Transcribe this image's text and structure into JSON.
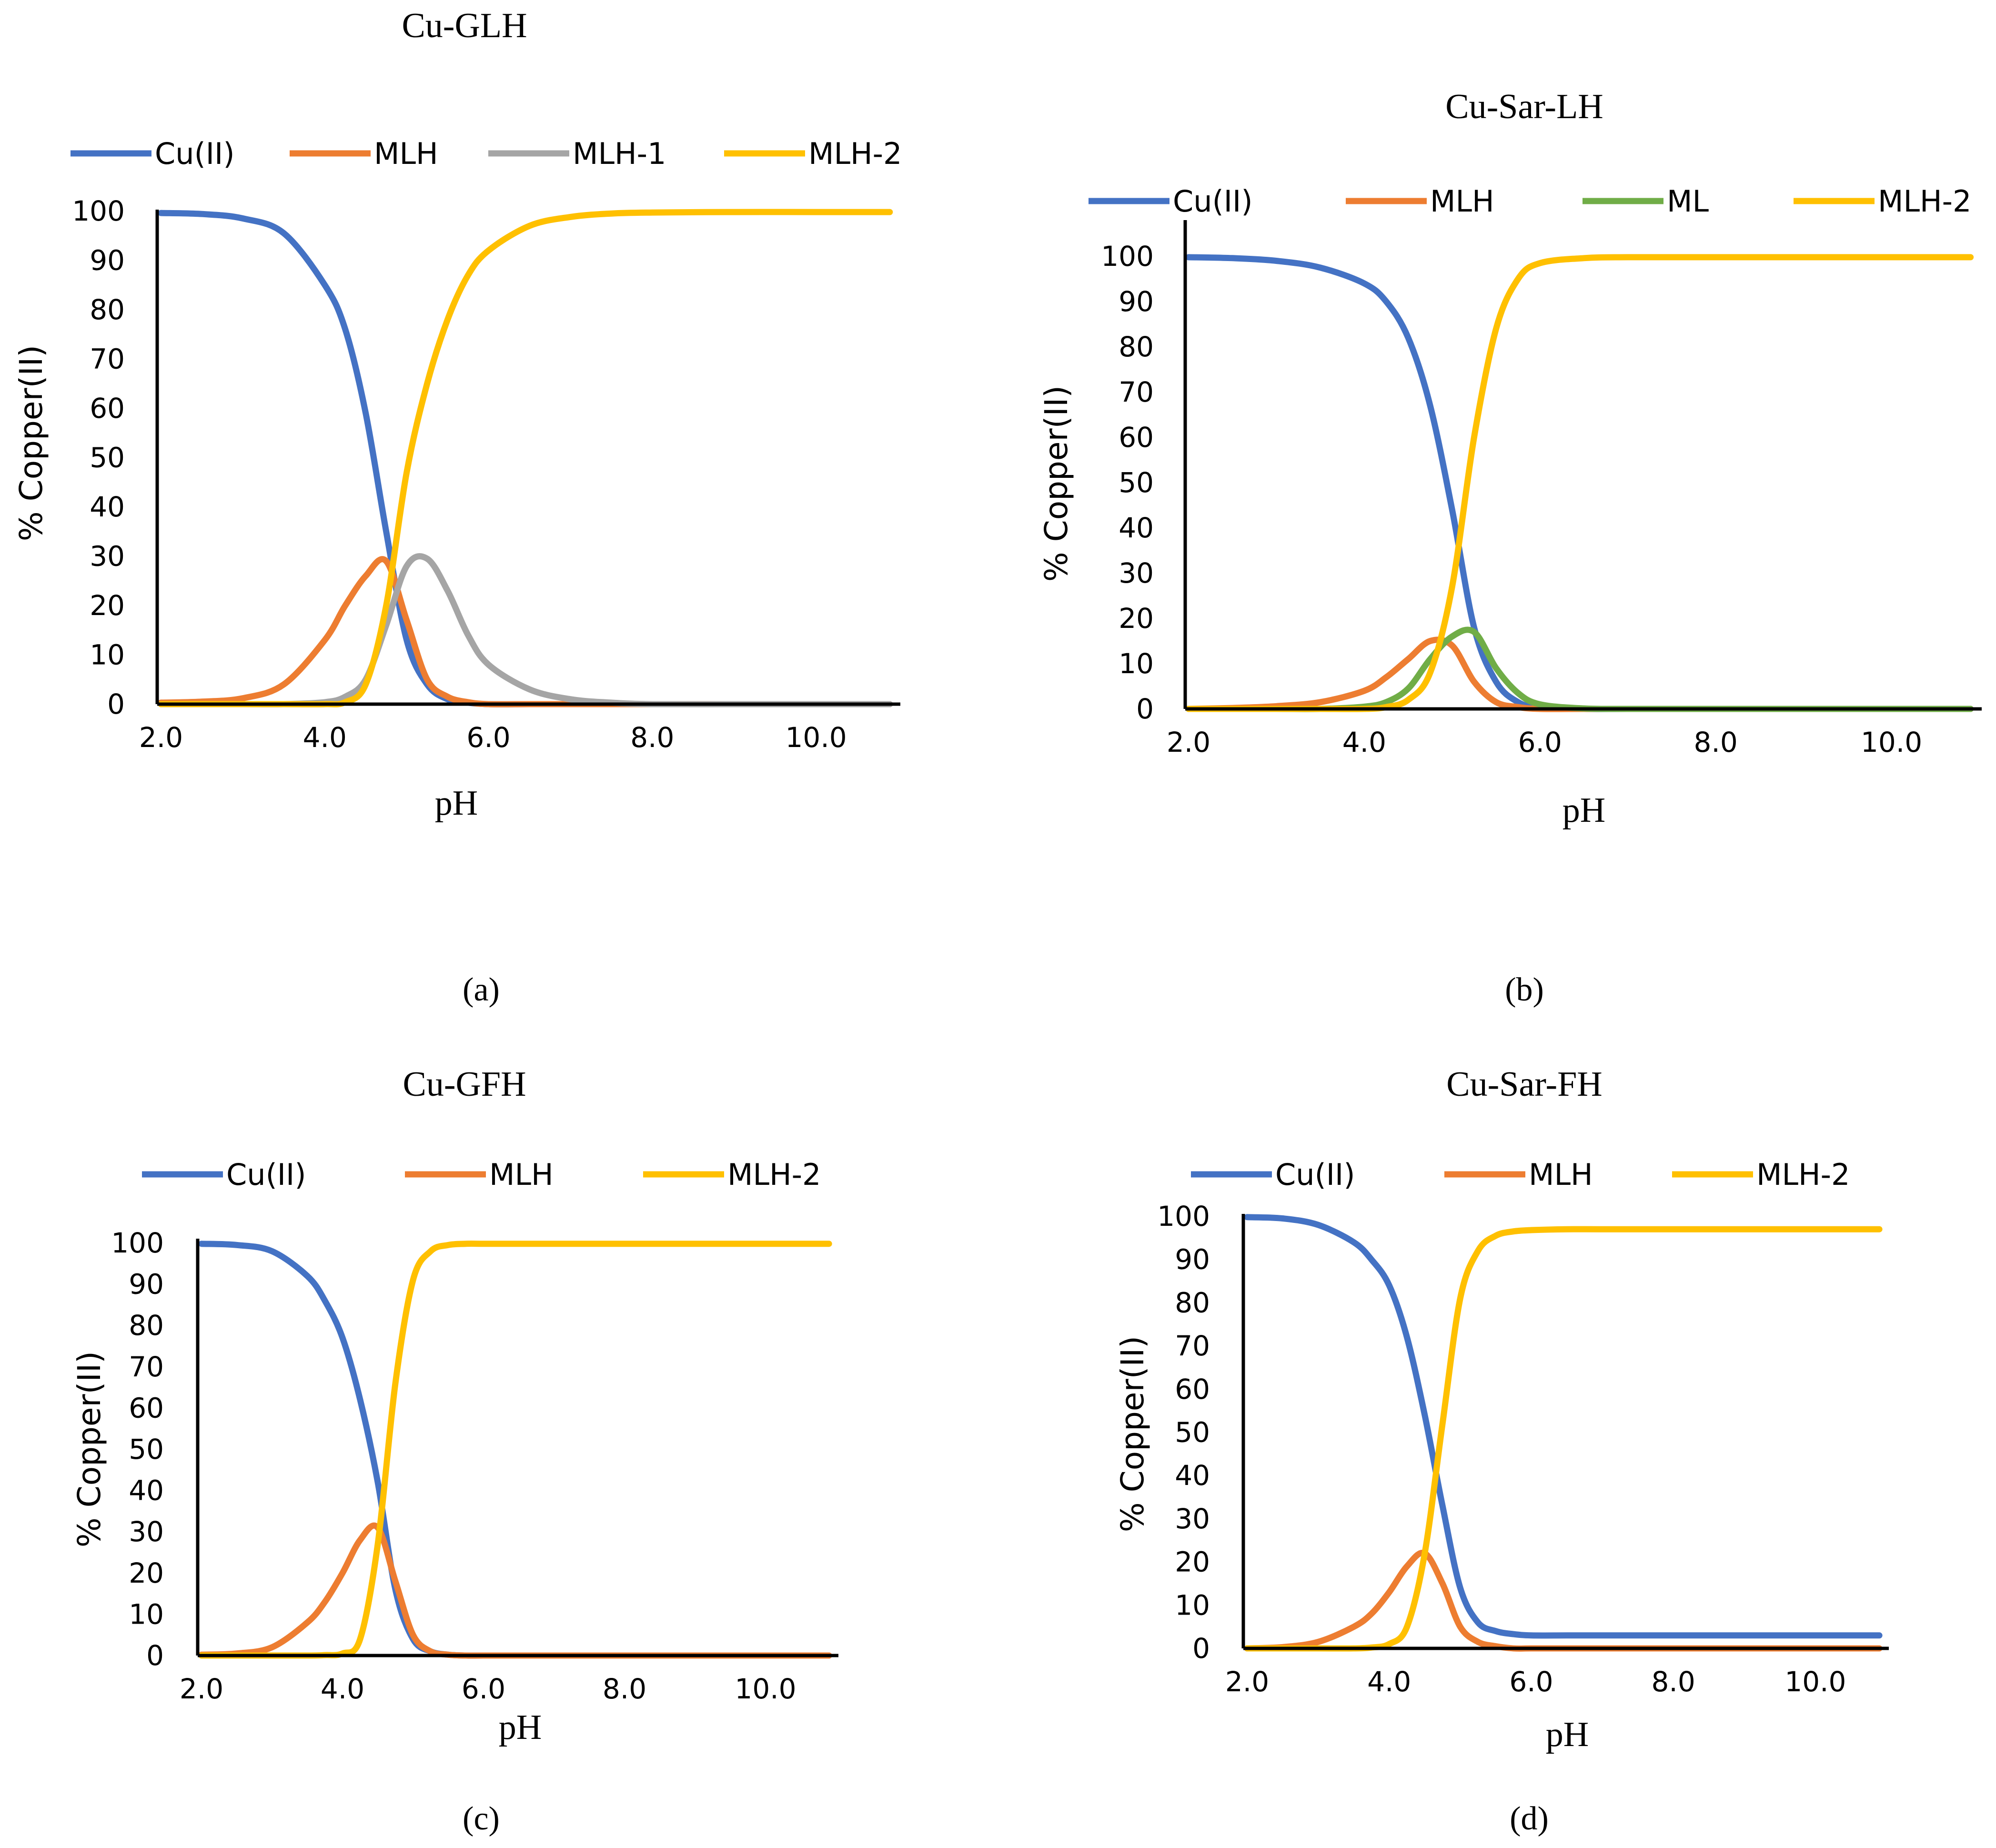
{
  "colors": {
    "Cu(II)": "#4472C4",
    "MLH": "#ED7D31",
    "MLH-1": "#A5A5A5",
    "ML": "#70AD47",
    "MLH-2": "#FFC000"
  },
  "chart_data": [
    {
      "type": "line",
      "panel": "a",
      "caption": "(a)",
      "title": "Cu-GLH",
      "xlabel": "pH",
      "ylabel": "% Copper(II)",
      "xlim": [
        2.0,
        11.0
      ],
      "ylim": [
        0,
        100
      ],
      "xticks": [
        "2.0",
        "4.0",
        "6.0",
        "8.0",
        "10.0"
      ],
      "yticks": [
        "0",
        "10",
        "20",
        "30",
        "40",
        "50",
        "60",
        "70",
        "80",
        "90",
        "100"
      ],
      "grid": false,
      "legend_position": "top",
      "x": [
        2.0,
        2.5,
        3.0,
        3.5,
        4.0,
        4.25,
        4.5,
        4.75,
        5.0,
        5.25,
        5.5,
        5.75,
        6.0,
        6.5,
        7.0,
        7.5,
        8.0,
        9.0,
        10.0,
        10.9
      ],
      "series": [
        {
          "name": "Cu(II)",
          "values": [
            99.6,
            99.4,
            98.5,
            95.5,
            85,
            76,
            59,
            35,
            13,
            4,
            1,
            0.3,
            0,
            0,
            0,
            0,
            0,
            0,
            0,
            0
          ]
        },
        {
          "name": "MLH",
          "values": [
            0.3,
            0.5,
            1.2,
            4,
            13,
            20,
            26,
            29,
            17,
            5,
            1.5,
            0.4,
            0,
            0,
            0,
            0,
            0,
            0,
            0,
            0
          ]
        },
        {
          "name": "MLH-1",
          "values": [
            0,
            0,
            0,
            0,
            0.4,
            1.5,
            5,
            16,
            28,
            29.5,
            23,
            14,
            8,
            3,
            1,
            0.3,
            0,
            0,
            0,
            0
          ]
        },
        {
          "name": "MLH-2",
          "values": [
            0,
            0,
            0,
            0,
            0,
            0.4,
            4,
            20,
            47,
            65,
            78,
            87,
            92,
            97,
            98.8,
            99.5,
            99.7,
            99.8,
            99.8,
            99.8
          ]
        }
      ]
    },
    {
      "type": "line",
      "panel": "b",
      "caption": "(b)",
      "title": "Cu-Sar-LH",
      "xlabel": "pH",
      "ylabel": "% Copper(II)",
      "xlim": [
        2.0,
        11.0
      ],
      "ylim": [
        0,
        100
      ],
      "xticks": [
        "2.0",
        "4.0",
        "6.0",
        "8.0",
        "10.0"
      ],
      "yticks": [
        "0",
        "10",
        "20",
        "30",
        "40",
        "50",
        "60",
        "70",
        "80",
        "90",
        "100"
      ],
      "grid": false,
      "legend_position": "top",
      "x": [
        2.0,
        2.5,
        3.0,
        3.5,
        4.0,
        4.25,
        4.5,
        4.75,
        5.0,
        5.25,
        5.5,
        5.75,
        6.0,
        6.5,
        7.0,
        8.0,
        9.0,
        10.0,
        10.9
      ],
      "series": [
        {
          "name": "Cu(II)",
          "values": [
            99.8,
            99.6,
            99,
            97.5,
            94,
            90,
            82,
            67,
            44,
            18,
            6,
            1.5,
            0.3,
            0,
            0,
            0,
            0,
            0,
            0
          ]
        },
        {
          "name": "MLH",
          "values": [
            0,
            0.2,
            0.6,
            1.5,
            4,
            7,
            11,
            15,
            14,
            6,
            1.5,
            0.4,
            0,
            0,
            0,
            0,
            0,
            0,
            0
          ]
        },
        {
          "name": "ML",
          "values": [
            0,
            0,
            0,
            0,
            0.5,
            1.5,
            4.5,
            11,
            16,
            17,
            9,
            3.5,
            1,
            0.1,
            0,
            0,
            0,
            0,
            0
          ]
        },
        {
          "name": "MLH-2",
          "values": [
            0,
            0,
            0,
            0,
            0,
            0.4,
            2,
            8,
            27,
            60,
            84,
            95,
            98.5,
            99.6,
            99.8,
            99.8,
            99.8,
            99.8,
            99.8
          ]
        }
      ]
    },
    {
      "type": "line",
      "panel": "c",
      "caption": "(c)",
      "title": "Cu-GFH",
      "xlabel": "pH",
      "ylabel": "% Copper(II)",
      "xlim": [
        2.0,
        11.0
      ],
      "ylim": [
        0,
        100
      ],
      "xticks": [
        "2.0",
        "4.0",
        "6.0",
        "8.0",
        "10.0"
      ],
      "yticks": [
        "0",
        "10",
        "20",
        "30",
        "40",
        "50",
        "60",
        "70",
        "80",
        "90",
        "100"
      ],
      "grid": false,
      "legend_position": "top",
      "x": [
        2.0,
        2.5,
        3.0,
        3.5,
        3.75,
        4.0,
        4.25,
        4.5,
        4.75,
        5.0,
        5.25,
        5.5,
        5.75,
        6.0,
        6.5,
        7.0,
        8.0,
        9.0,
        10.0,
        10.9
      ],
      "series": [
        {
          "name": "Cu(II)",
          "values": [
            99.8,
            99.5,
            98,
            92,
            86,
            77,
            62,
            42,
            16,
            4,
            1,
            0.2,
            0,
            0,
            0,
            0,
            0,
            0,
            0,
            0
          ]
        },
        {
          "name": "MLH",
          "values": [
            0.2,
            0.5,
            2,
            8,
            13,
            20,
            28,
            31,
            18,
            5,
            1,
            0.2,
            0,
            0,
            0,
            0,
            0,
            0,
            0,
            0
          ]
        },
        {
          "name": "MLH-2",
          "values": [
            0,
            0,
            0,
            0,
            0.1,
            0.5,
            4,
            27,
            66,
            91,
            98,
            99.5,
            99.8,
            99.8,
            99.8,
            99.8,
            99.8,
            99.8,
            99.8,
            99.8
          ]
        }
      ]
    },
    {
      "type": "line",
      "panel": "d",
      "caption": "(d)",
      "title": "Cu-Sar-FH",
      "xlabel": "pH",
      "ylabel": "% Copper(II)",
      "xlim": [
        2.0,
        11.0
      ],
      "ylim": [
        0,
        100
      ],
      "xticks": [
        "2.0",
        "4.0",
        "6.0",
        "8.0",
        "10.0"
      ],
      "yticks": [
        "0",
        "10",
        "20",
        "30",
        "40",
        "50",
        "60",
        "70",
        "80",
        "90",
        "100"
      ],
      "grid": false,
      "legend_position": "top",
      "x": [
        2.0,
        2.5,
        3.0,
        3.5,
        3.75,
        4.0,
        4.25,
        4.5,
        4.75,
        5.0,
        5.25,
        5.5,
        5.75,
        6.0,
        6.5,
        7.0,
        8.0,
        9.0,
        10.0,
        10.9
      ],
      "series": [
        {
          "name": "Cu(II)",
          "values": [
            99.8,
            99.5,
            98,
            94,
            90,
            84,
            72,
            54,
            33,
            14,
            6,
            4,
            3.3,
            3,
            3,
            3,
            3,
            3,
            3,
            3
          ]
        },
        {
          "name": "MLH",
          "values": [
            0,
            0.3,
            1.5,
            5,
            8,
            13,
            19,
            22,
            15,
            5,
            1.5,
            0.5,
            0,
            0,
            0,
            0,
            0,
            0,
            0,
            0
          ]
        },
        {
          "name": "MLH-2",
          "values": [
            0,
            0,
            0,
            0,
            0.2,
            1,
            5,
            22,
            52,
            81,
            92,
            95.5,
            96.5,
            96.8,
            97,
            97,
            97,
            97,
            97,
            97
          ]
        }
      ]
    }
  ]
}
